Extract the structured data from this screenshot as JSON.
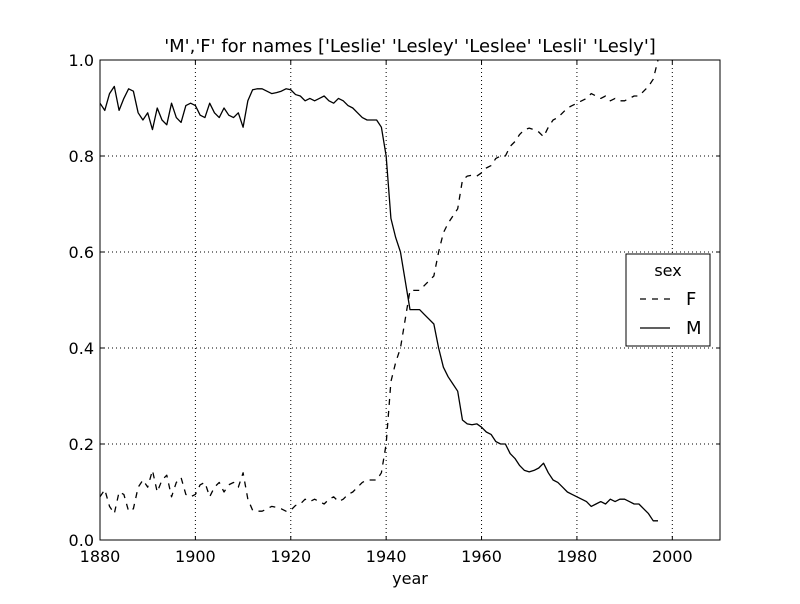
{
  "chart_data": {
    "type": "line",
    "title": "'M','F' for names ['Leslie' 'Lesley' 'Leslee' 'Lesli' 'Lesly']",
    "xlabel": "year",
    "ylabel": "",
    "xlim": [
      1880,
      2010
    ],
    "ylim": [
      0.0,
      1.0
    ],
    "x_ticks": [
      1880,
      1900,
      1920,
      1940,
      1960,
      1980,
      2000
    ],
    "x_tick_labels": [
      "1880",
      "1900",
      "1920",
      "1940",
      "1960",
      "1980",
      "2000"
    ],
    "y_ticks": [
      0.0,
      0.2,
      0.4,
      0.6,
      0.8,
      1.0
    ],
    "y_tick_labels": [
      "0.0",
      "0.2",
      "0.4",
      "0.6",
      "0.8",
      "1.0"
    ],
    "grid": true,
    "legend": {
      "title": "sex",
      "placement": "center-right",
      "entries": [
        "F",
        "M"
      ]
    },
    "x": [
      1880,
      1881,
      1882,
      1883,
      1884,
      1885,
      1886,
      1887,
      1888,
      1889,
      1890,
      1891,
      1892,
      1893,
      1894,
      1895,
      1896,
      1897,
      1898,
      1899,
      1900,
      1901,
      1902,
      1903,
      1904,
      1905,
      1906,
      1907,
      1908,
      1909,
      1910,
      1911,
      1912,
      1913,
      1914,
      1915,
      1916,
      1917,
      1918,
      1919,
      1920,
      1921,
      1922,
      1923,
      1924,
      1925,
      1926,
      1927,
      1928,
      1929,
      1930,
      1931,
      1932,
      1933,
      1934,
      1935,
      1936,
      1937,
      1938,
      1939,
      1940,
      1941,
      1942,
      1943,
      1944,
      1945,
      1946,
      1947,
      1948,
      1949,
      1950,
      1951,
      1952,
      1953,
      1954,
      1955,
      1956,
      1957,
      1958,
      1959,
      1960,
      1961,
      1962,
      1963,
      1964,
      1965,
      1966,
      1967,
      1968,
      1969,
      1970,
      1971,
      1972,
      1973,
      1974,
      1975,
      1976,
      1977,
      1978,
      1979,
      1980,
      1981,
      1982,
      1983,
      1984,
      1985,
      1986,
      1987,
      1988,
      1989,
      1990,
      1991,
      1992,
      1993,
      1994,
      1995,
      1996,
      1997
    ],
    "series": [
      {
        "name": "F",
        "style": "dashed",
        "color": "#000000",
        "values": [
          0.09,
          0.105,
          0.07,
          0.055,
          0.1,
          0.095,
          0.06,
          0.065,
          0.11,
          0.125,
          0.11,
          0.145,
          0.1,
          0.125,
          0.135,
          0.09,
          0.12,
          0.13,
          0.095,
          0.09,
          0.095,
          0.115,
          0.12,
          0.09,
          0.11,
          0.12,
          0.1,
          0.115,
          0.12,
          0.11,
          0.14,
          0.085,
          0.062,
          0.06,
          0.06,
          0.065,
          0.07,
          0.068,
          0.065,
          0.06,
          0.062,
          0.072,
          0.075,
          0.085,
          0.08,
          0.085,
          0.08,
          0.075,
          0.085,
          0.09,
          0.08,
          0.085,
          0.095,
          0.1,
          0.11,
          0.12,
          0.125,
          0.125,
          0.125,
          0.14,
          0.2,
          0.33,
          0.37,
          0.4,
          0.46,
          0.52,
          0.52,
          0.52,
          0.53,
          0.54,
          0.55,
          0.6,
          0.64,
          0.66,
          0.675,
          0.69,
          0.75,
          0.758,
          0.76,
          0.758,
          0.765,
          0.775,
          0.78,
          0.795,
          0.8,
          0.8,
          0.82,
          0.83,
          0.845,
          0.855,
          0.858,
          0.855,
          0.85,
          0.84,
          0.86,
          0.875,
          0.88,
          0.89,
          0.9,
          0.905,
          0.91,
          0.915,
          0.92,
          0.93,
          0.925,
          0.92,
          0.925,
          0.915,
          0.92,
          0.915,
          0.915,
          0.92,
          0.925,
          0.925,
          0.935,
          0.945,
          0.96,
          1.0
        ]
      },
      {
        "name": "M",
        "style": "solid",
        "color": "#000000",
        "values": [
          0.91,
          0.895,
          0.93,
          0.945,
          0.895,
          0.92,
          0.94,
          0.935,
          0.89,
          0.875,
          0.89,
          0.855,
          0.9,
          0.875,
          0.865,
          0.91,
          0.88,
          0.87,
          0.905,
          0.91,
          0.905,
          0.885,
          0.88,
          0.91,
          0.89,
          0.88,
          0.9,
          0.885,
          0.88,
          0.89,
          0.86,
          0.915,
          0.938,
          0.94,
          0.94,
          0.935,
          0.93,
          0.932,
          0.935,
          0.94,
          0.938,
          0.928,
          0.925,
          0.915,
          0.92,
          0.915,
          0.92,
          0.925,
          0.915,
          0.91,
          0.92,
          0.915,
          0.905,
          0.9,
          0.89,
          0.88,
          0.875,
          0.875,
          0.875,
          0.86,
          0.8,
          0.67,
          0.63,
          0.6,
          0.54,
          0.48,
          0.48,
          0.48,
          0.47,
          0.46,
          0.45,
          0.4,
          0.36,
          0.34,
          0.325,
          0.31,
          0.25,
          0.242,
          0.24,
          0.242,
          0.235,
          0.225,
          0.22,
          0.205,
          0.2,
          0.2,
          0.18,
          0.17,
          0.155,
          0.145,
          0.142,
          0.145,
          0.15,
          0.16,
          0.14,
          0.125,
          0.12,
          0.11,
          0.1,
          0.095,
          0.09,
          0.085,
          0.08,
          0.07,
          0.075,
          0.08,
          0.075,
          0.085,
          0.08,
          0.085,
          0.085,
          0.08,
          0.075,
          0.075,
          0.065,
          0.055,
          0.04,
          0.04
        ]
      }
    ]
  }
}
